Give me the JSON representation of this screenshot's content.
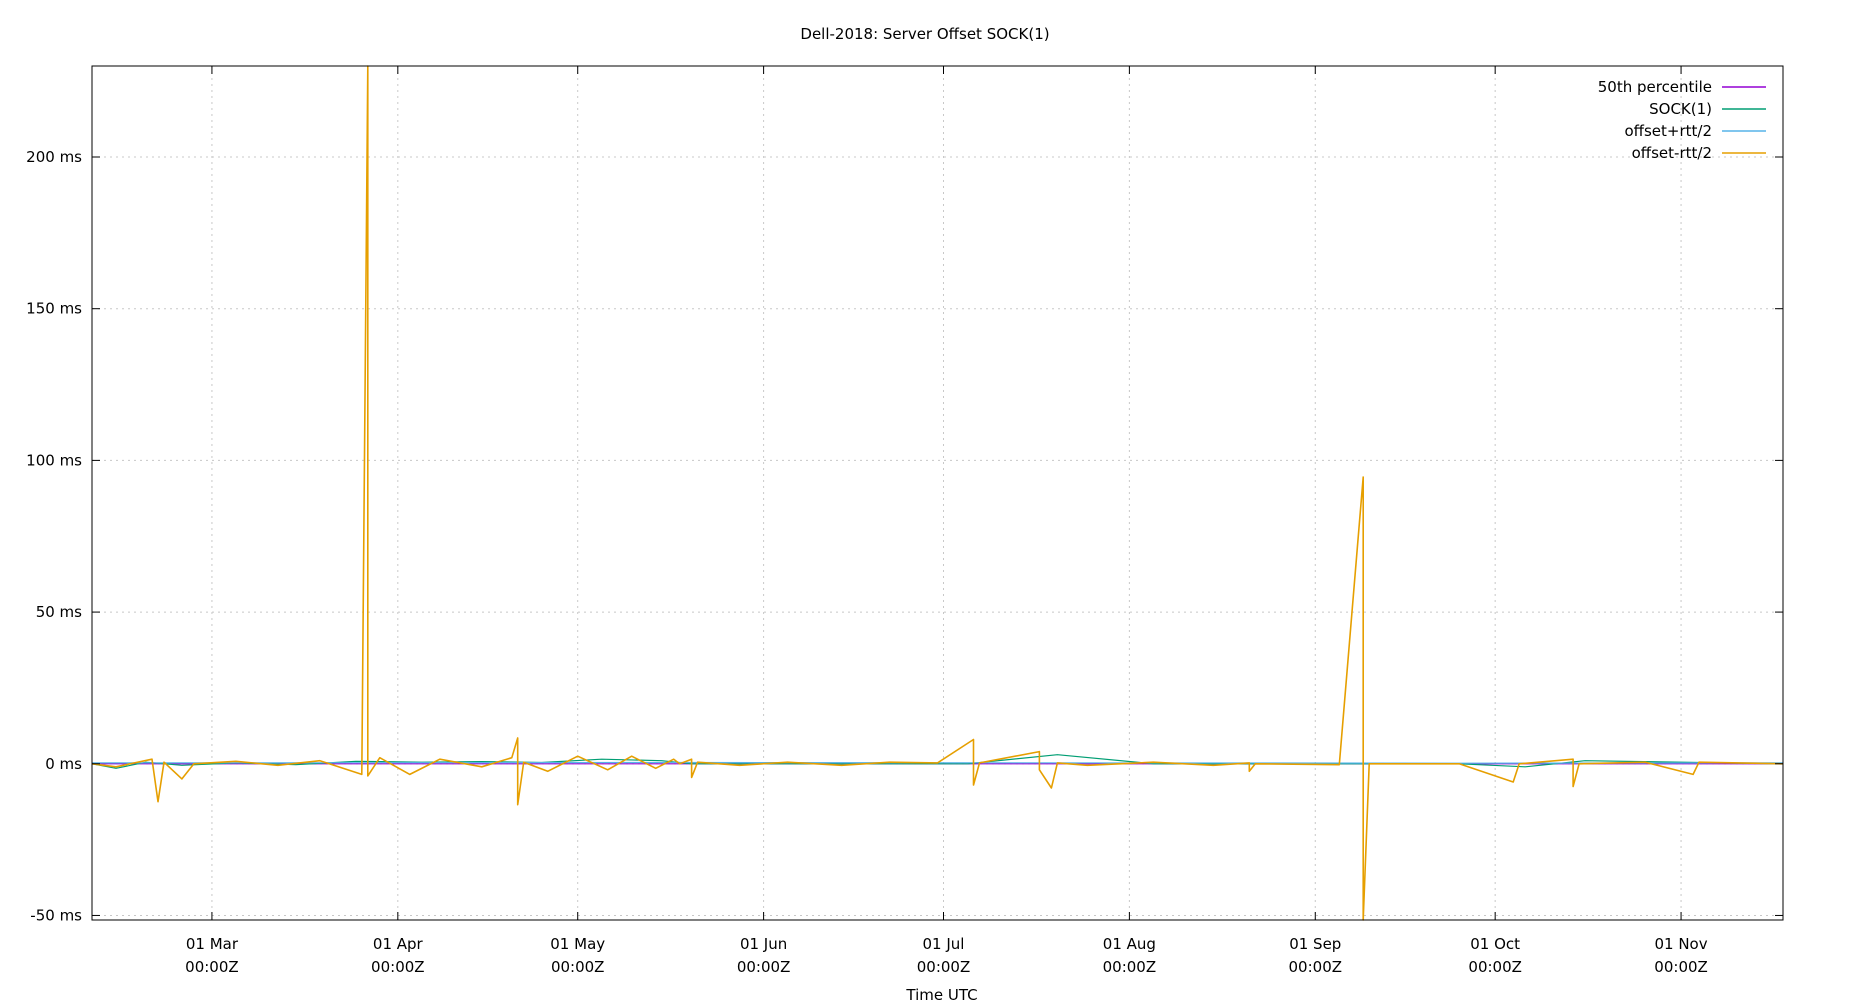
{
  "chart_data": {
    "type": "line",
    "title": "Dell-2018: Server Offset SOCK(1)",
    "xlabel": "Time UTC",
    "ylabel": "",
    "y_unit": "ms",
    "grid": true,
    "legend_position": "top-right",
    "x_range": [
      "2018-02-09",
      "2018-11-18"
    ],
    "ylim": [
      -51.5,
      230.0
    ],
    "y_ticks": [
      {
        "value": -50,
        "label": "-50 ms"
      },
      {
        "value": 0,
        "label": "0 ms"
      },
      {
        "value": 50,
        "label": "50 ms"
      },
      {
        "value": 100,
        "label": "100 ms"
      },
      {
        "value": 150,
        "label": "150 ms"
      },
      {
        "value": 200,
        "label": "200 ms"
      }
    ],
    "x_ticks": [
      {
        "date": "2018-03-01",
        "line1": "01 Mar",
        "line2": "00:00Z"
      },
      {
        "date": "2018-04-01",
        "line1": "01 Apr",
        "line2": "00:00Z"
      },
      {
        "date": "2018-05-01",
        "line1": "01 May",
        "line2": "00:00Z"
      },
      {
        "date": "2018-06-01",
        "line1": "01 Jun",
        "line2": "00:00Z"
      },
      {
        "date": "2018-07-01",
        "line1": "01 Jul",
        "line2": "00:00Z"
      },
      {
        "date": "2018-08-01",
        "line1": "01 Aug",
        "line2": "00:00Z"
      },
      {
        "date": "2018-09-01",
        "line1": "01 Sep",
        "line2": "00:00Z"
      },
      {
        "date": "2018-10-01",
        "line1": "01 Oct",
        "line2": "00:00Z"
      },
      {
        "date": "2018-11-01",
        "line1": "01 Nov",
        "line2": "00:00Z"
      }
    ],
    "series": [
      {
        "name": "50th percentile",
        "color": "#9400d3",
        "points": [
          [
            "2018-02-09",
            0.0
          ],
          [
            "2018-05-17",
            0.0
          ],
          [
            "2018-05-18",
            0.0
          ],
          [
            "2018-09-25",
            0.0
          ],
          [
            "2018-10-01",
            0.0
          ],
          [
            "2018-10-26",
            0.0
          ],
          [
            "2018-11-02",
            0.0
          ],
          [
            "2018-11-18",
            0.0
          ]
        ]
      },
      {
        "name": "SOCK(1)",
        "color": "#009e73",
        "points": [
          [
            "2018-02-09",
            0.0
          ],
          [
            "2018-02-13",
            -1.5
          ],
          [
            "2018-02-18",
            0.5
          ],
          [
            "2018-02-24",
            -0.5
          ],
          [
            "2018-03-05",
            0.3
          ],
          [
            "2018-03-15",
            -0.3
          ],
          [
            "2018-03-25",
            0.8
          ],
          [
            "2018-04-05",
            0.5
          ],
          [
            "2018-04-15",
            0.7
          ],
          [
            "2018-04-25",
            0.4
          ],
          [
            "2018-05-05",
            1.5
          ],
          [
            "2018-05-15",
            1.0
          ],
          [
            "2018-05-20",
            0.0
          ],
          [
            "2018-06-10",
            0.0
          ],
          [
            "2018-07-05",
            0.0
          ],
          [
            "2018-07-20",
            3.0
          ],
          [
            "2018-08-05",
            0.0
          ],
          [
            "2018-09-05",
            0.0
          ],
          [
            "2018-09-25",
            0.0
          ],
          [
            "2018-10-06",
            -1.0
          ],
          [
            "2018-10-16",
            1.0
          ],
          [
            "2018-11-18",
            0.0
          ]
        ]
      },
      {
        "name": "offset+rtt/2",
        "color": "#56b4e9",
        "points": [
          [
            "2018-02-09",
            0.3
          ],
          [
            "2018-05-17",
            0.4
          ],
          [
            "2018-09-25",
            0.2
          ],
          [
            "2018-11-18",
            0.3
          ]
        ]
      },
      {
        "name": "offset-rtt/2",
        "color": "#e69f00",
        "points": [
          [
            "2018-02-09",
            0.0
          ],
          [
            "2018-02-13",
            -1.0
          ],
          [
            "2018-02-19",
            1.5
          ],
          [
            "2018-02-20",
            -12.5
          ],
          [
            "2018-02-21",
            0.5
          ],
          [
            "2018-02-24",
            -5.0
          ],
          [
            "2018-02-26",
            0.0
          ],
          [
            "2018-03-05",
            0.8
          ],
          [
            "2018-03-12",
            -0.5
          ],
          [
            "2018-03-19",
            1.0
          ],
          [
            "2018-03-26",
            -3.5
          ],
          [
            "2018-03-27",
            230.0
          ],
          [
            "2018-03-27",
            -4.0
          ],
          [
            "2018-03-29",
            2.0
          ],
          [
            "2018-04-03",
            -3.5
          ],
          [
            "2018-04-08",
            1.5
          ],
          [
            "2018-04-15",
            -1.0
          ],
          [
            "2018-04-20",
            2.0
          ],
          [
            "2018-04-21",
            8.5
          ],
          [
            "2018-04-21",
            -13.5
          ],
          [
            "2018-04-22",
            0.5
          ],
          [
            "2018-04-26",
            -2.5
          ],
          [
            "2018-05-01",
            2.5
          ],
          [
            "2018-05-06",
            -2.0
          ],
          [
            "2018-05-10",
            2.5
          ],
          [
            "2018-05-14",
            -1.5
          ],
          [
            "2018-05-17",
            1.5
          ],
          [
            "2018-05-18",
            0.0
          ],
          [
            "2018-05-20",
            1.5
          ],
          [
            "2018-05-20",
            -4.5
          ],
          [
            "2018-05-21",
            0.5
          ],
          [
            "2018-05-28",
            -0.5
          ],
          [
            "2018-06-05",
            0.5
          ],
          [
            "2018-06-14",
            -0.5
          ],
          [
            "2018-06-22",
            0.5
          ],
          [
            "2018-06-30",
            0.3
          ],
          [
            "2018-07-06",
            8.0
          ],
          [
            "2018-07-06",
            -7.0
          ],
          [
            "2018-07-07",
            0.3
          ],
          [
            "2018-07-17",
            4.0
          ],
          [
            "2018-07-17",
            -2.0
          ],
          [
            "2018-07-19",
            -8.0
          ],
          [
            "2018-07-20",
            0.3
          ],
          [
            "2018-07-25",
            -0.5
          ],
          [
            "2018-08-05",
            0.5
          ],
          [
            "2018-08-15",
            -0.5
          ],
          [
            "2018-08-21",
            0.3
          ],
          [
            "2018-08-21",
            -2.5
          ],
          [
            "2018-08-22",
            0.0
          ],
          [
            "2018-09-05",
            -0.3
          ],
          [
            "2018-09-09",
            94.5
          ],
          [
            "2018-09-09",
            -51.5
          ],
          [
            "2018-09-10",
            0.0
          ],
          [
            "2018-09-25",
            0.0
          ],
          [
            "2018-10-04",
            -6.0
          ],
          [
            "2018-10-05",
            0.0
          ],
          [
            "2018-10-14",
            1.5
          ],
          [
            "2018-10-14",
            -7.5
          ],
          [
            "2018-10-15",
            0.0
          ],
          [
            "2018-10-26",
            0.5
          ],
          [
            "2018-11-03",
            -3.5
          ],
          [
            "2018-11-04",
            0.5
          ],
          [
            "2018-11-18",
            0.0
          ]
        ]
      }
    ]
  }
}
